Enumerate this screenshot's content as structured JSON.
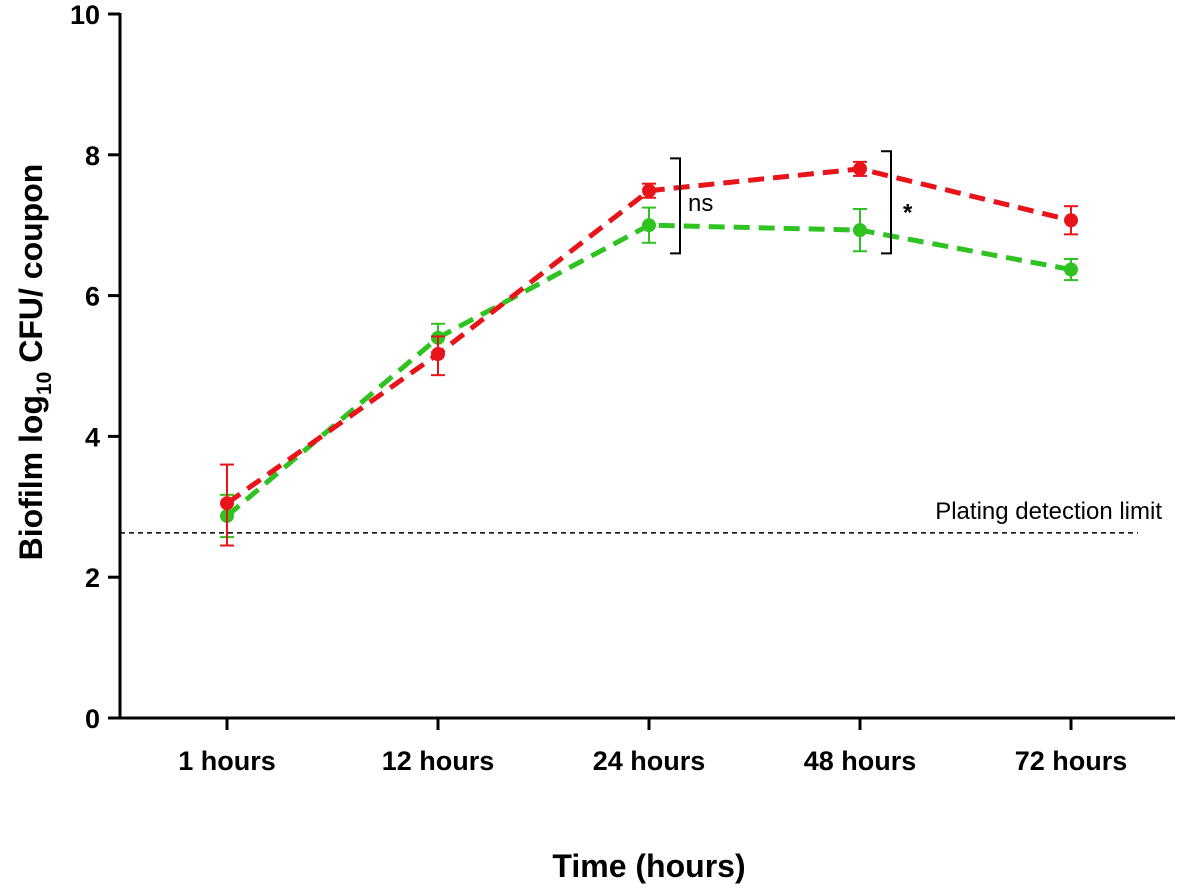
{
  "chart_data": {
    "type": "line",
    "title": "",
    "xlabel": "Time (hours)",
    "ylabel": {
      "main": "Biofilm log",
      "sub": "10",
      "rest": " CFU/ coupon"
    },
    "categories": [
      "1 hours",
      "12 hours",
      "24 hours",
      "48 hours",
      "72 hours"
    ],
    "ylim": [
      0,
      10
    ],
    "yticks": [
      "0",
      "2",
      "4",
      "6",
      "8",
      "10"
    ],
    "grid": false,
    "legend": "none",
    "series": [
      {
        "color": "#e8141a",
        "values": [
          3.05,
          5.17,
          7.49,
          7.8,
          7.07
        ],
        "err_lo": [
          0.6,
          0.3,
          0.1,
          0.1,
          0.2
        ],
        "err_hi": [
          0.55,
          0.25,
          0.1,
          0.1,
          0.2
        ]
      },
      {
        "color": "#2ec321",
        "values": [
          2.87,
          5.4,
          7.0,
          6.93,
          6.37
        ],
        "err_lo": [
          0.3,
          0.2,
          0.25,
          0.3,
          0.15
        ],
        "err_hi": [
          0.3,
          0.2,
          0.25,
          0.3,
          0.15
        ]
      }
    ],
    "detection_limit": {
      "value": 2.63,
      "label": "Plating detection limit"
    },
    "significance": [
      {
        "category_index": 2,
        "label": "ns",
        "y_low": 6.6,
        "y_high": 7.95
      },
      {
        "category_index": 3,
        "label": "*",
        "y_low": 6.6,
        "y_high": 8.05
      }
    ]
  }
}
